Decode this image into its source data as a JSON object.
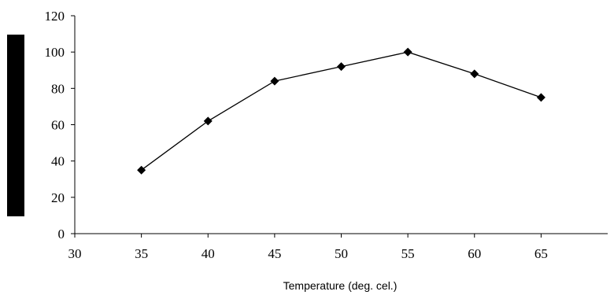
{
  "chart_data": {
    "type": "line",
    "title": "",
    "xlabel": "Temperature (deg. cel.)",
    "ylabel": "",
    "xlim": [
      30,
      70
    ],
    "ylim": [
      0,
      120
    ],
    "x_ticks": [
      30,
      35,
      40,
      45,
      50,
      55,
      60,
      65
    ],
    "y_ticks": [
      0,
      20,
      40,
      60,
      80,
      100,
      120
    ],
    "grid": false,
    "legend": "none",
    "marker": "diamond",
    "line_color": "#000000",
    "series": [
      {
        "x": [
          35,
          40,
          45,
          50,
          55,
          60,
          65
        ],
        "values": [
          35,
          62,
          84,
          92,
          100,
          88,
          75
        ]
      }
    ]
  }
}
